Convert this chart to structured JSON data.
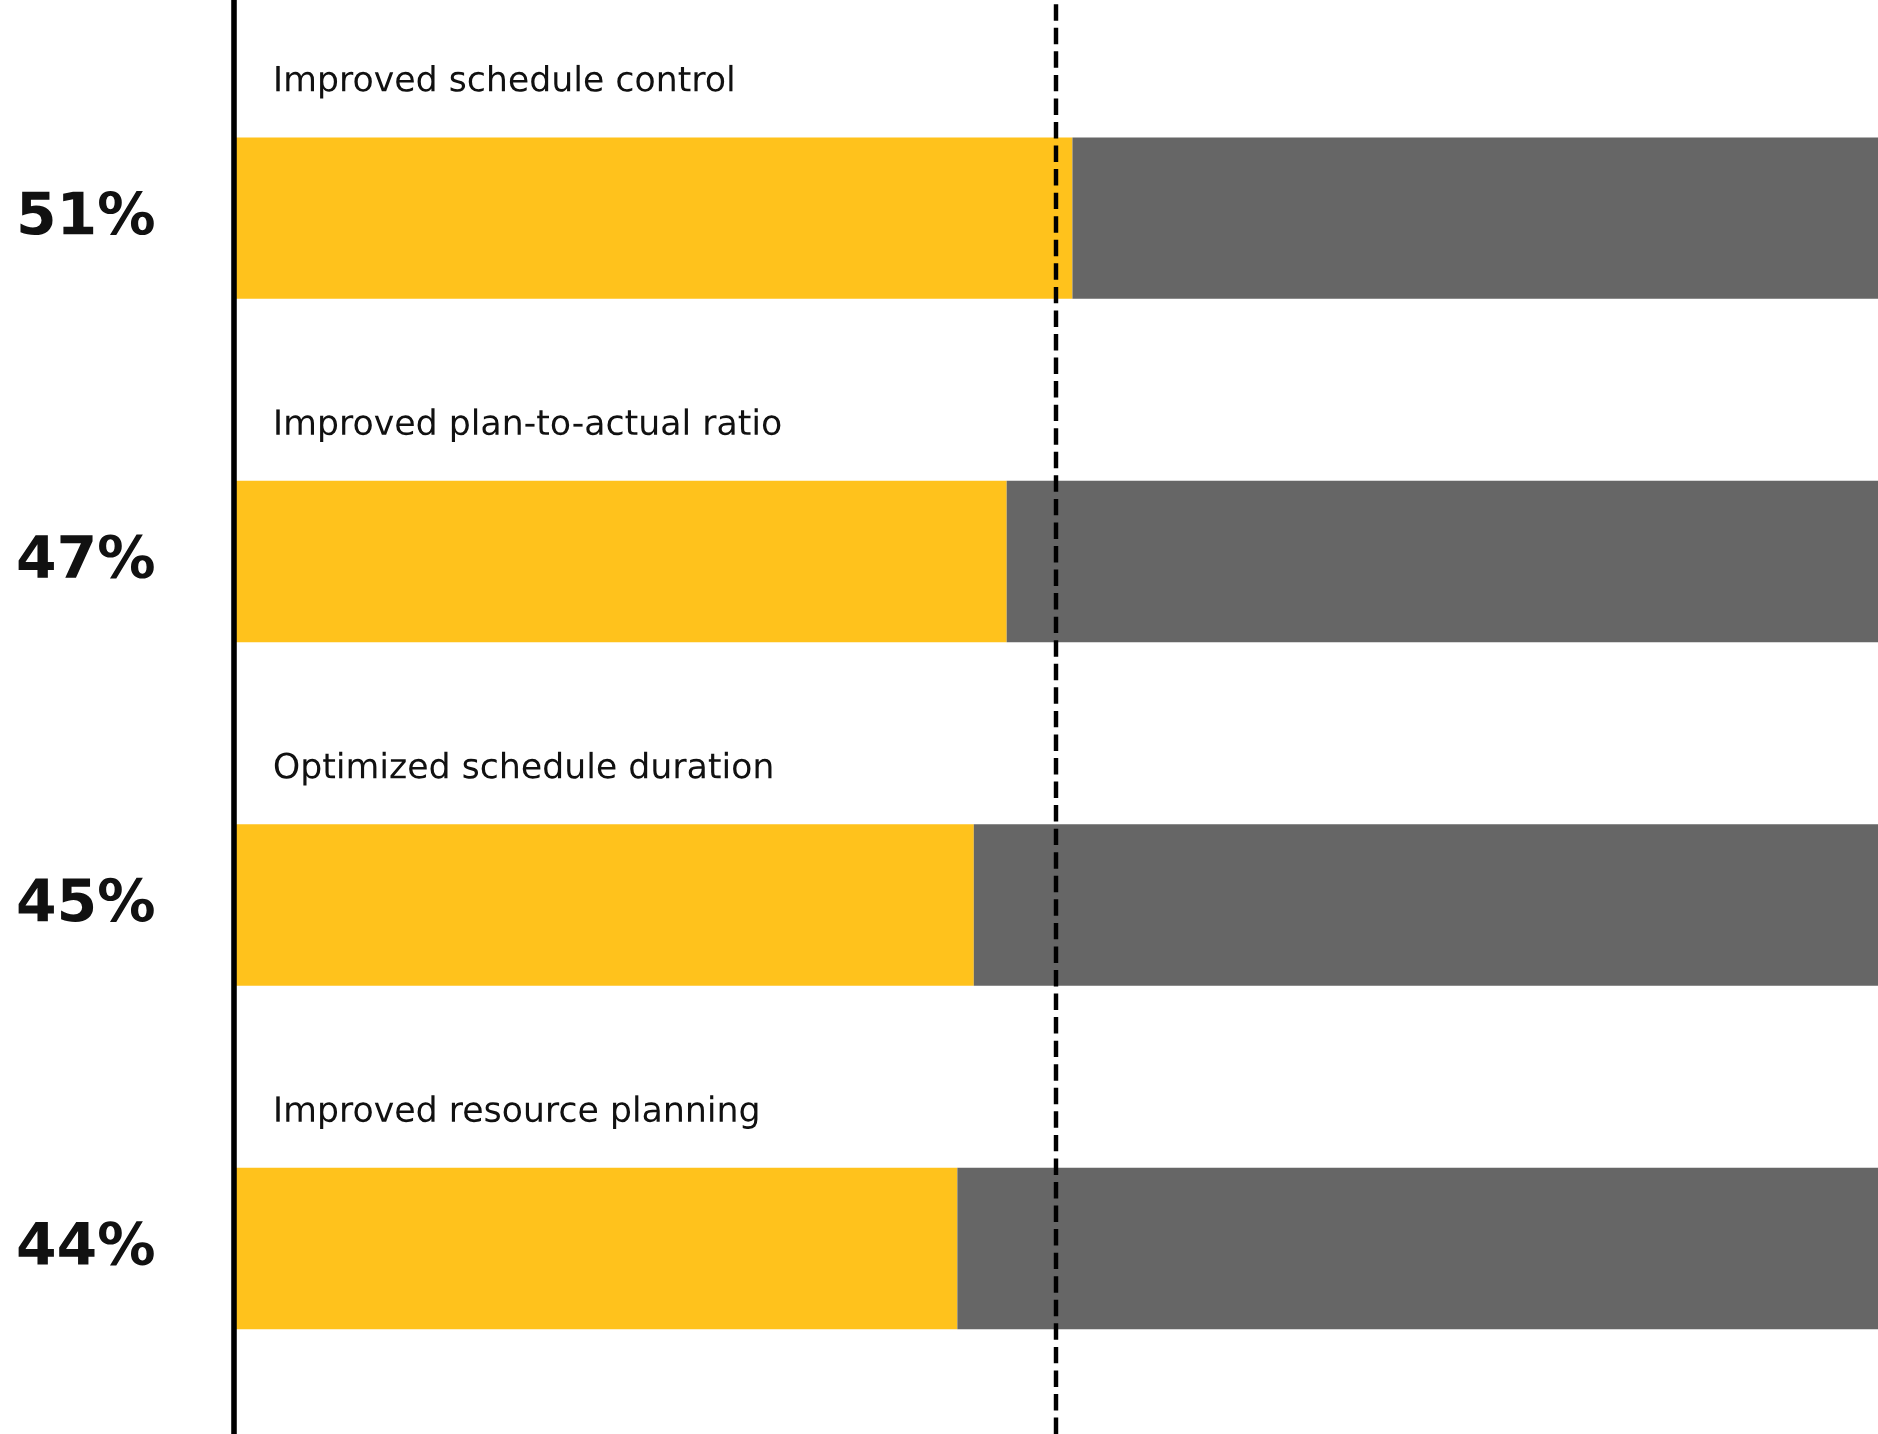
{
  "chart_data": {
    "type": "bar",
    "orientation": "horizontal",
    "stacked": true,
    "categories": [
      "Improved schedule control",
      "Improved plan-to-actual ratio",
      "Optimized schedule duration",
      "Improved resource planning"
    ],
    "series": [
      {
        "color": "#ffc21c",
        "values": [
          51,
          47,
          45,
          44
        ],
        "value_labels": [
          "51%",
          "47%",
          "45%",
          "44%"
        ]
      },
      {
        "color": "#666666",
        "values": [
          49,
          53,
          55,
          56
        ]
      }
    ],
    "xlim": [
      0,
      100
    ],
    "ref_lines": [
      {
        "axis": "x",
        "value": 50,
        "label": null,
        "color": "#000000",
        "line_style": "dashed"
      }
    ]
  }
}
